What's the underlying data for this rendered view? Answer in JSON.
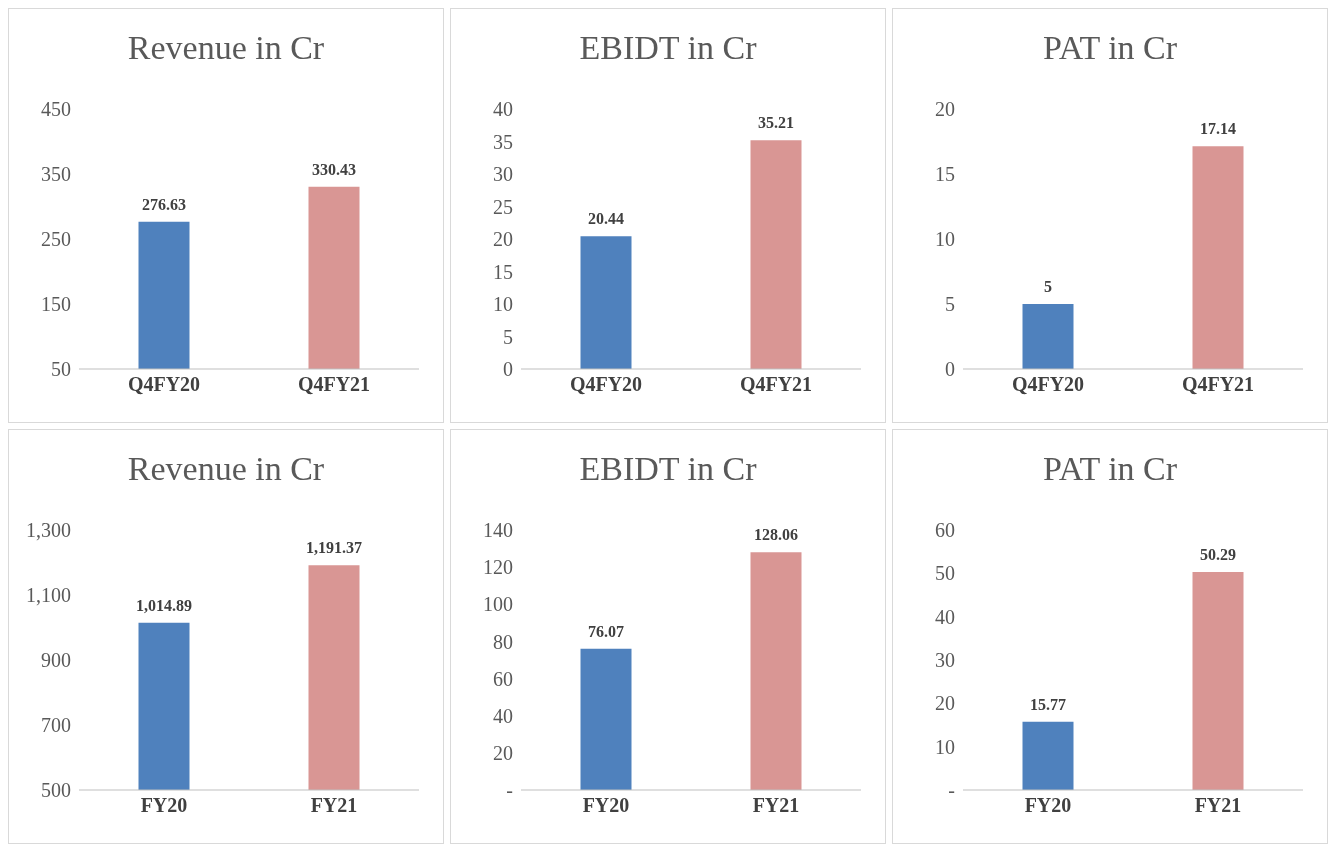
{
  "chart_data": [
    {
      "type": "bar",
      "title": "Revenue in Cr",
      "categories": [
        "Q4FY20",
        "Q4FY21"
      ],
      "values": [
        276.63,
        330.43
      ],
      "colors": [
        "#4f81bd",
        "#d99694"
      ],
      "ylim": [
        50,
        450
      ],
      "yticks": [
        50,
        150,
        250,
        350,
        450
      ],
      "data_labels": true,
      "grid": false,
      "legend": false
    },
    {
      "type": "bar",
      "title": "EBIDT in Cr",
      "categories": [
        "Q4FY20",
        "Q4FY21"
      ],
      "values": [
        20.44,
        35.21
      ],
      "colors": [
        "#4f81bd",
        "#d99694"
      ],
      "ylim": [
        0,
        40
      ],
      "yticks": [
        0,
        5,
        10,
        15,
        20,
        25,
        30,
        35,
        40
      ],
      "data_labels": true,
      "grid": false,
      "legend": false
    },
    {
      "type": "bar",
      "title": "PAT in Cr",
      "categories": [
        "Q4FY20",
        "Q4FY21"
      ],
      "values": [
        5,
        17.14
      ],
      "colors": [
        "#4f81bd",
        "#d99694"
      ],
      "ylim": [
        0,
        20
      ],
      "yticks": [
        0,
        5,
        10,
        15,
        20
      ],
      "data_labels": true,
      "grid": false,
      "legend": false
    },
    {
      "type": "bar",
      "title": "Revenue in Cr",
      "categories": [
        "FY20",
        "FY21"
      ],
      "values": [
        1014.89,
        1191.37
      ],
      "value_labels": [
        "1,014.89",
        "1,191.37"
      ],
      "colors": [
        "#4f81bd",
        "#d99694"
      ],
      "ylim": [
        500,
        1300
      ],
      "yticks": [
        500,
        {
          "value": 700,
          "label": "700"
        },
        900,
        {
          "value": 1100,
          "label": "1,100"
        },
        {
          "value": 1300,
          "label": "1,300"
        }
      ],
      "grid": false,
      "legend": false
    },
    {
      "type": "bar",
      "title": "EBIDT in Cr",
      "categories": [
        "FY20",
        "FY21"
      ],
      "values": [
        76.07,
        128.06
      ],
      "colors": [
        "#4f81bd",
        "#d99694"
      ],
      "ylim": [
        0,
        140
      ],
      "yticks": [
        {
          "value": 0,
          "label": "-"
        },
        20,
        40,
        60,
        80,
        100,
        120,
        140
      ],
      "data_labels": true,
      "grid": false,
      "legend": false
    },
    {
      "type": "bar",
      "title": "PAT in Cr",
      "categories": [
        "FY20",
        "FY21"
      ],
      "values": [
        15.77,
        50.29
      ],
      "colors": [
        "#4f81bd",
        "#d99694"
      ],
      "ylim": [
        0,
        60
      ],
      "yticks": [
        {
          "value": 0,
          "label": "-"
        },
        10,
        20,
        30,
        40,
        50,
        60
      ],
      "data_labels": true,
      "grid": false,
      "legend": false
    }
  ]
}
